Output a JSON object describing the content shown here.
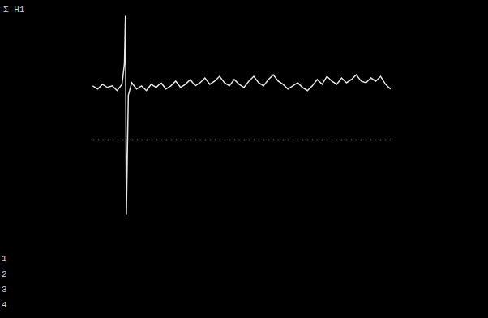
{
  "chart_data": {
    "type": "line",
    "title": "Σ H1",
    "annotations": [
      "1",
      "2",
      "3",
      "4"
    ],
    "x": [
      19,
      20,
      21,
      22,
      23,
      24,
      25,
      25.5,
      25.7,
      25.9,
      26.3,
      27,
      28,
      29,
      30,
      31,
      32,
      33,
      34,
      35,
      36,
      37,
      38,
      39,
      40,
      41,
      42,
      43,
      44,
      45,
      46,
      47,
      48,
      49,
      50,
      51,
      52,
      53,
      54,
      55,
      56,
      57,
      58,
      59,
      60,
      61,
      62,
      63,
      64,
      65,
      66,
      67,
      68,
      69,
      70,
      71,
      72,
      73,
      74,
      75,
      76,
      77,
      78,
      79,
      80
    ],
    "values": [
      46,
      44,
      47,
      45,
      46,
      43,
      47,
      60,
      90,
      -35,
      40,
      48,
      44,
      46,
      43,
      47,
      45,
      48,
      44,
      46,
      49,
      45,
      47,
      50,
      46,
      48,
      51,
      47,
      49,
      52,
      48,
      46,
      50,
      47,
      45,
      49,
      52,
      48,
      46,
      50,
      53,
      49,
      47,
      44,
      46,
      48,
      45,
      43,
      46,
      50,
      47,
      52,
      49,
      47,
      51,
      48,
      50,
      53,
      49,
      48,
      51,
      49,
      52,
      47,
      44
    ],
    "baseline": 12,
    "xlim": [
      0,
      100
    ],
    "ylim": [
      -100,
      100
    ],
    "color": "#e6e6e6",
    "line_style": "solid",
    "tick_labels": false,
    "grid": false
  }
}
